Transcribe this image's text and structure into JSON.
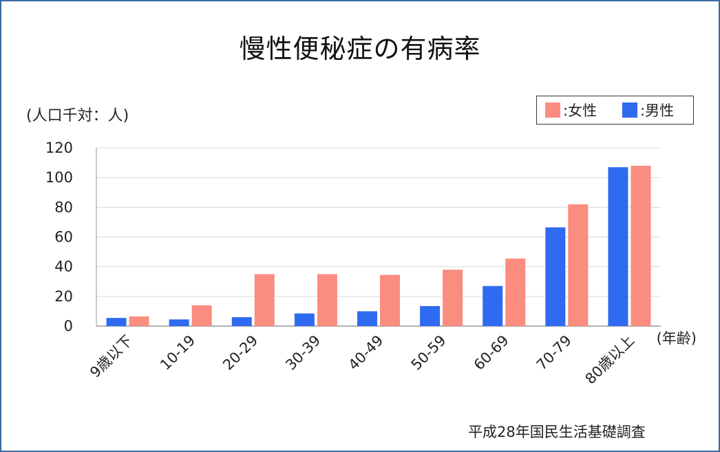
{
  "chart_data": {
    "type": "bar",
    "title": "慢性便秘症の有病率",
    "ylabel": "(人口千対：人)",
    "xlabel": "(年齢)",
    "source": "平成28年国民生活基礎調査",
    "categories": [
      "9歳以下",
      "10-19",
      "20-29",
      "30-39",
      "40-49",
      "50-59",
      "60-69",
      "70-79",
      "80歳以上"
    ],
    "series": [
      {
        "name": ":男性",
        "color": "#2e6bf0",
        "values": [
          5.5,
          4.5,
          6,
          8.5,
          10,
          13.5,
          27,
          66.5,
          107
        ]
      },
      {
        "name": ":女性",
        "color": "#fb8c80",
        "values": [
          6.5,
          14,
          35,
          35,
          34.5,
          38,
          45.5,
          82,
          108
        ]
      }
    ],
    "legend_order": [
      1,
      0
    ],
    "legend_position": "top-right",
    "ylim": [
      0,
      120
    ],
    "yticks": [
      0,
      20,
      40,
      60,
      80,
      100,
      120
    ],
    "grid": true
  }
}
